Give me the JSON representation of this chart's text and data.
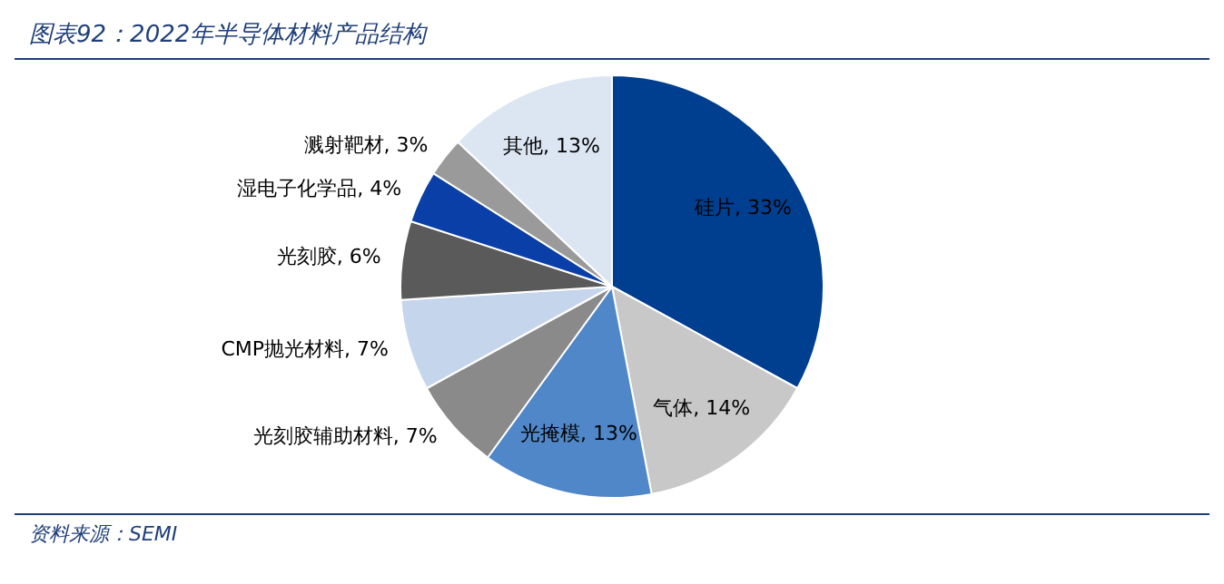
{
  "chart_data": {
    "type": "pie",
    "title": "图表92：2022年半导体材料产品结构",
    "categories": [
      "硅片",
      "气体",
      "光掩模",
      "光刻胶辅助材料",
      "CMP抛光材料",
      "光刻胶",
      "湿电子化学品",
      "溅射靶材",
      "其他"
    ],
    "values": [
      33,
      14,
      13,
      7,
      7,
      6,
      4,
      3,
      13
    ],
    "value_labels": [
      "33%",
      "14%",
      "13%",
      "7%",
      "7%",
      "6%",
      "4%",
      "3%",
      "13%"
    ],
    "colors": [
      "#003f8f",
      "#c8c8c8",
      "#4f87c9",
      "#8a8a8a",
      "#c5d5ec",
      "#5a5a5a",
      "#0a3fa8",
      "#9a9a9a",
      "#dce6f2"
    ],
    "legend": false,
    "annotations": [
      "资料来源：SEMI"
    ]
  }
}
